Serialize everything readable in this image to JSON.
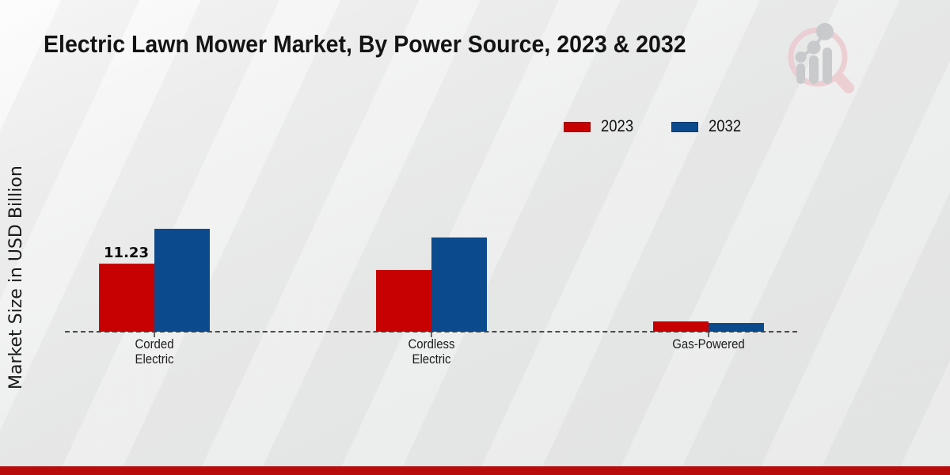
{
  "title": "Electric Lawn Mower Market, By Power Source, 2023 & 2032",
  "y_axis_label": "Market Size in USD Billion",
  "legend": {
    "items": [
      {
        "label": "2023",
        "color": "#c70101"
      },
      {
        "label": "2032",
        "color": "#0b4a8c"
      }
    ]
  },
  "chart_data": {
    "type": "bar",
    "title": "Electric Lawn Mower Market, By Power Source, 2023 & 2032",
    "xlabel": "",
    "ylabel": "Market Size in USD Billion",
    "categories": [
      "Corded Electric",
      "Cordless Electric",
      "Gas-Powered"
    ],
    "category_lines": [
      [
        "Corded",
        "Electric"
      ],
      [
        "Cordless",
        "Electric"
      ],
      [
        "Gas-Powered"
      ]
    ],
    "series": [
      {
        "name": "2023",
        "color": "#c70101",
        "values": [
          11.23,
          10.2,
          1.7
        ]
      },
      {
        "name": "2032",
        "color": "#0b4a8c",
        "values": [
          17.0,
          15.5,
          1.45
        ]
      }
    ],
    "value_labels": [
      {
        "series_index": 0,
        "category_index": 0,
        "text": "11.23"
      }
    ],
    "axis": {
      "baseline_value": 0,
      "dashed_zero_line": true,
      "grid": false,
      "y_tick_labels_visible": false
    },
    "legend_position": "top-right"
  },
  "watermark": {
    "icon": "bar-chart-magnifier-logo",
    "ring_color": "#ecccd1",
    "bars_color": "#c5c6c9"
  },
  "footer": {
    "bar_color": "#b80b0b"
  }
}
